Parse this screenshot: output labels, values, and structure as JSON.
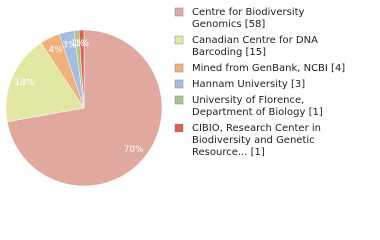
{
  "chart_data": {
    "type": "pie",
    "categories": [
      [
        "Centre for Biodiversity",
        "Genomics [58]"
      ],
      [
        "Canadian Centre for DNA",
        "Barcoding [15]"
      ],
      [
        "Mined from GenBank, NCBI [4]"
      ],
      [
        "Hannam University [3]"
      ],
      [
        "University of Florence,",
        "Department of Biology [1]"
      ],
      [
        "CIBIO, Research Center in",
        "Biodiversity and Genetic",
        "Resource... [1]"
      ]
    ],
    "values": [
      70,
      18,
      4,
      3,
      1,
      1
    ],
    "value_labels": [
      "70%",
      "18%",
      "4%",
      "3%",
      "1%",
      "1%"
    ],
    "colors": [
      "#e0a89e",
      "#e2e8a4",
      "#f0b07a",
      "#a6bde0",
      "#a8c88a",
      "#e06050"
    ]
  }
}
